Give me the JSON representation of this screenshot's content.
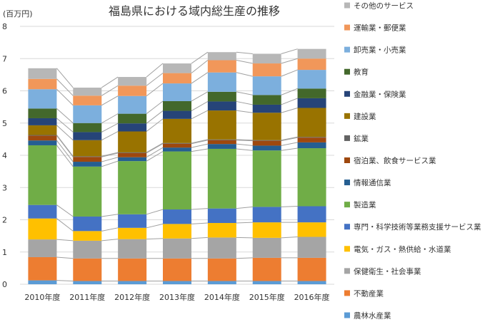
{
  "chart_data": {
    "type": "bar",
    "stacked": true,
    "title": "福島県における域内総生産の推移",
    "unit_label": "(百万円)",
    "categories": [
      "2010年度",
      "2011年度",
      "2012年度",
      "2013年度",
      "2014年度",
      "2015年度",
      "2016年度"
    ],
    "ylim": [
      0,
      8
    ],
    "yticks": [
      0,
      1,
      2,
      3,
      4,
      5,
      6,
      7,
      8
    ],
    "grid": true,
    "connector_lines": true,
    "legend_position": "right",
    "series": [
      {
        "name": "農林水産業",
        "color": "#5b9bd5",
        "values": [
          0.12,
          0.1,
          0.1,
          0.1,
          0.1,
          0.1,
          0.1
        ]
      },
      {
        "name": "不動産業",
        "color": "#ed7d31",
        "values": [
          0.72,
          0.7,
          0.7,
          0.7,
          0.7,
          0.72,
          0.72
        ]
      },
      {
        "name": "保健衛生・社会事業",
        "color": "#a5a5a5",
        "values": [
          0.55,
          0.55,
          0.6,
          0.62,
          0.65,
          0.62,
          0.65
        ]
      },
      {
        "name": "電気・ガス・熱供給・水道業",
        "color": "#ffc000",
        "values": [
          0.65,
          0.3,
          0.35,
          0.45,
          0.45,
          0.48,
          0.45
        ]
      },
      {
        "name": "専門・科学技術等業務支援サービス業",
        "color": "#4472c4",
        "values": [
          0.42,
          0.45,
          0.42,
          0.45,
          0.45,
          0.48,
          0.5
        ]
      },
      {
        "name": "製造業",
        "color": "#70ad47",
        "values": [
          1.85,
          1.55,
          1.65,
          1.8,
          1.85,
          1.75,
          1.8
        ]
      },
      {
        "name": "情報通信業",
        "color": "#255e91",
        "values": [
          0.15,
          0.15,
          0.12,
          0.12,
          0.15,
          0.15,
          0.18
        ]
      },
      {
        "name": "宿泊業、飲食サービス業",
        "color": "#9e480e",
        "values": [
          0.15,
          0.15,
          0.13,
          0.12,
          0.12,
          0.15,
          0.15
        ]
      },
      {
        "name": "鉱業",
        "color": "#636363",
        "values": [
          0.02,
          0.02,
          0.02,
          0.02,
          0.02,
          0.02,
          0.02
        ]
      },
      {
        "name": "建設業",
        "color": "#997300",
        "values": [
          0.3,
          0.5,
          0.65,
          0.75,
          0.9,
          0.85,
          0.9
        ]
      },
      {
        "name": "金融業・保険業",
        "color": "#264478",
        "values": [
          0.22,
          0.25,
          0.25,
          0.25,
          0.28,
          0.25,
          0.3
        ]
      },
      {
        "name": "教育",
        "color": "#43682b",
        "values": [
          0.3,
          0.28,
          0.3,
          0.3,
          0.3,
          0.3,
          0.3
        ]
      },
      {
        "name": "卸売業・小売業",
        "color": "#7cafdd",
        "values": [
          0.6,
          0.55,
          0.55,
          0.55,
          0.6,
          0.58,
          0.58
        ]
      },
      {
        "name": "運輸業・郵便業",
        "color": "#f1975a",
        "values": [
          0.32,
          0.3,
          0.32,
          0.32,
          0.38,
          0.4,
          0.35
        ]
      },
      {
        "name": "その他のサービス",
        "color": "#b7b7b7",
        "values": [
          0.33,
          0.25,
          0.27,
          0.3,
          0.25,
          0.3,
          0.3
        ]
      }
    ]
  }
}
